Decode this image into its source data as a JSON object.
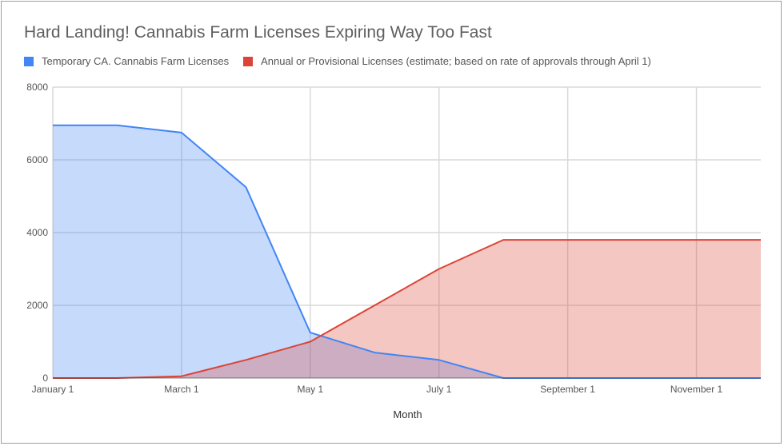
{
  "chart_data": {
    "type": "area",
    "title": "Hard Landing! Cannabis Farm Licenses Expiring Way Too Fast",
    "xlabel": "Month",
    "ylabel": "",
    "ylim": [
      0,
      8000
    ],
    "yticks": [
      0,
      2000,
      4000,
      6000,
      8000
    ],
    "xtick_labels": [
      "January 1",
      "March 1",
      "May 1",
      "July 1",
      "September 1",
      "November 1"
    ],
    "x": [
      "January 1",
      "February 1",
      "March 1",
      "April 1",
      "May 1",
      "June 1",
      "July 1",
      "August 1",
      "September 1",
      "October 1",
      "November 1",
      "December 1"
    ],
    "series": [
      {
        "name": "Temporary CA. Cannabis Farm Licenses",
        "color": "#4285f4",
        "values": [
          6950,
          6950,
          6750,
          5250,
          1250,
          700,
          500,
          0,
          0,
          0,
          0,
          0
        ]
      },
      {
        "name": "Annual or Provisional Licenses (estimate; based on rate of approvals through April 1)",
        "color": "#db4437",
        "values": [
          0,
          0,
          50,
          500,
          1000,
          2000,
          3000,
          3800,
          3800,
          3800,
          3800,
          3800
        ]
      }
    ],
    "grid": true,
    "legend_position": "top"
  },
  "legend": {
    "items": [
      {
        "label": "Temporary CA. Cannabis Farm Licenses",
        "color": "#4285f4"
      },
      {
        "label": "Annual or Provisional Licenses (estimate; based on rate of approvals through April 1)",
        "color": "#db4437"
      }
    ]
  }
}
